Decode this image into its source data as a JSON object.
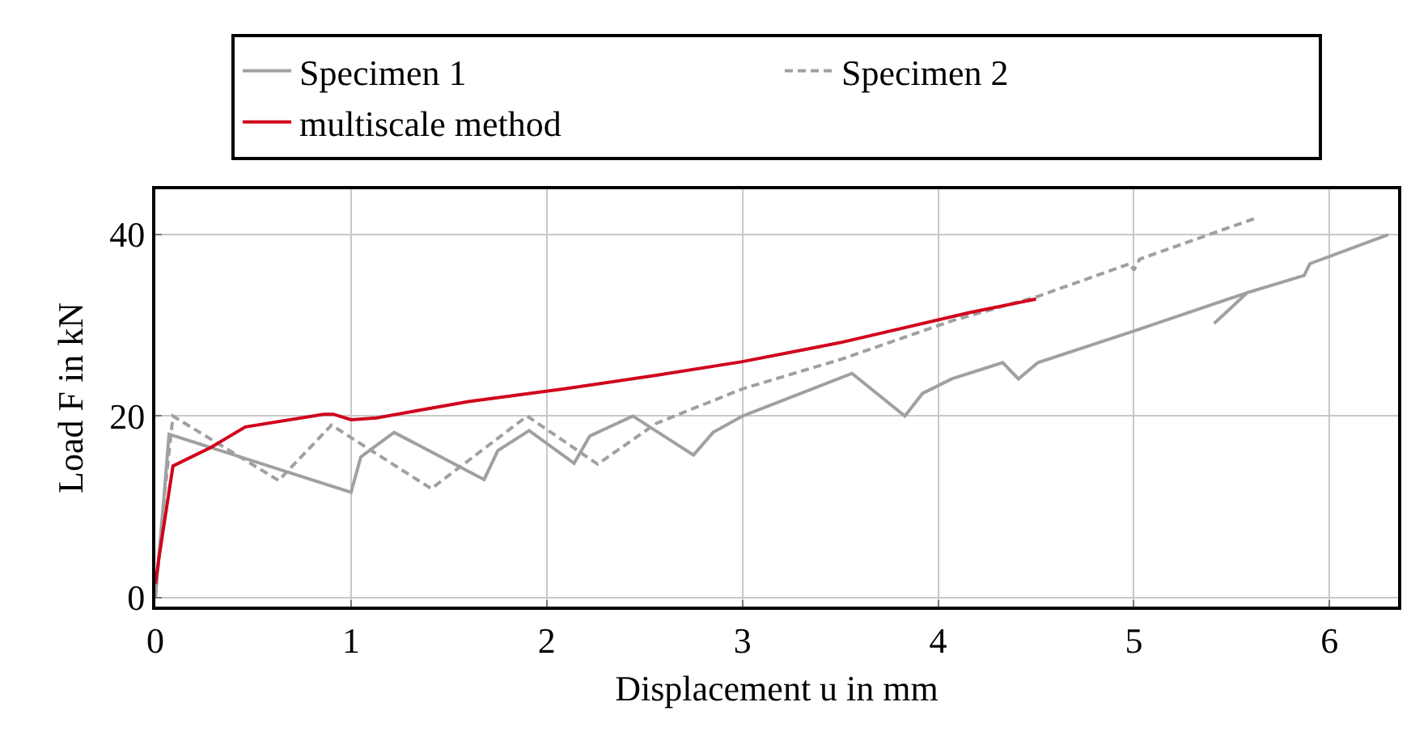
{
  "chart_data": {
    "type": "line",
    "xlabel": "Displacement u in mm",
    "ylabel": "Load F in kN",
    "xlim": [
      0,
      6.35
    ],
    "ylim": [
      -1,
      45
    ],
    "xticks": [
      0,
      1,
      2,
      3,
      4,
      5,
      6
    ],
    "yticks": [
      0,
      20,
      40
    ],
    "grid": true,
    "legend": "top",
    "marker": "none",
    "series": [
      {
        "name": "Specimen 1",
        "color": "#a0a0a0",
        "line_style": "solid",
        "x": [
          0,
          0.04,
          0.07,
          1.0,
          1.05,
          1.22,
          1.68,
          1.75,
          1.91,
          2.14,
          2.22,
          2.44,
          2.75,
          2.85,
          3.0,
          3.56,
          3.83,
          3.92,
          4.07,
          4.33,
          4.41,
          4.51,
          4.99,
          5.58,
          5.41,
          5.58,
          5.87,
          5.9,
          6.3
        ],
        "values": [
          0,
          10,
          18,
          11.6,
          15.5,
          18.2,
          13,
          16.2,
          18.4,
          14.8,
          17.8,
          20,
          15.7,
          18.2,
          20,
          24.7,
          20,
          22.5,
          24.1,
          25.9,
          24.1,
          25.9,
          29.3,
          33.6,
          30.2,
          33.6,
          35.5,
          36.8,
          40
        ]
      },
      {
        "name": "Specimen 2",
        "color": "#a0a0a0",
        "line_style": "dashed",
        "x": [
          0,
          0.05,
          0.09,
          0.63,
          0.9,
          1.41,
          1.9,
          2.26,
          2.56,
          3.0,
          3.51,
          4.07,
          4.51,
          4.98,
          5.0,
          5.03,
          5.62
        ],
        "values": [
          0,
          12,
          20,
          12.9,
          19,
          12,
          20,
          14.7,
          19.2,
          23,
          26.3,
          30.5,
          33.2,
          36.8,
          36.1,
          37.3,
          41.8
        ]
      },
      {
        "name": "multiscale method",
        "color": "#d0021b",
        "line_style": "solid",
        "x": [
          0,
          0.02,
          0.09,
          0.28,
          0.46,
          0.86,
          0.91,
          1.0,
          1.13,
          1.6,
          2.09,
          2.56,
          3.0,
          3.5,
          4.16,
          4.5
        ],
        "values": [
          1.5,
          4.6,
          14.5,
          16.5,
          18.8,
          20.2,
          20.2,
          19.6,
          19.8,
          21.6,
          23,
          24.5,
          26,
          28.1,
          31.4,
          32.9
        ]
      }
    ]
  }
}
